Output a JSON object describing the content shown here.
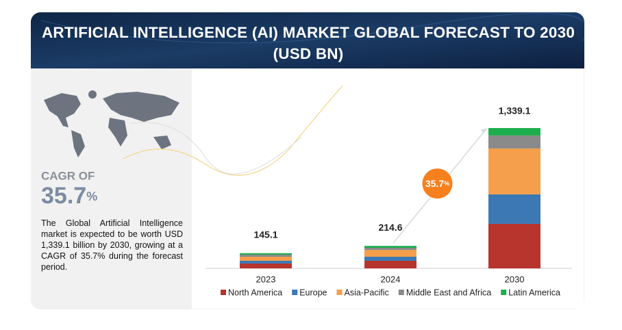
{
  "chart_data": {
    "type": "bar",
    "stacked": true,
    "title": "ARTIFICIAL INTELLIGENCE (AI) MARKET GLOBAL FORECAST TO 2030 (USD BN)",
    "categories": [
      "2023",
      "2024",
      "2030"
    ],
    "series": [
      {
        "name": "North America",
        "color": "#b7352d",
        "values": [
          46,
          72,
          425
        ]
      },
      {
        "name": "Europe",
        "color": "#3b78b4",
        "values": [
          26,
          39,
          281
        ]
      },
      {
        "name": "Asia-Pacific",
        "color": "#f59e4c",
        "values": [
          39,
          65,
          438
        ]
      },
      {
        "name": "Middle East and Africa",
        "color": "#8a8a8a",
        "values": [
          20,
          20,
          124
        ]
      },
      {
        "name": "Latin America",
        "color": "#1dae4e",
        "values": [
          14,
          18.6,
          71
        ]
      }
    ],
    "totals": [
      145.1,
      214.6,
      1339.1
    ],
    "total_labels": [
      "145.1",
      "214.6",
      "1,339.1"
    ],
    "cagr_bubble": {
      "value": "35.7",
      "unit": "%"
    },
    "legend": "bottom"
  },
  "sidebar": {
    "cagr_heading": "CAGR OF",
    "cagr_value": "35.7",
    "cagr_unit": "%",
    "description": "The Global Artificial Intelligence market is expected to be worth USD 1,339.1 billion by 2030, growing at a CAGR of 35.7% during the forecast period."
  }
}
